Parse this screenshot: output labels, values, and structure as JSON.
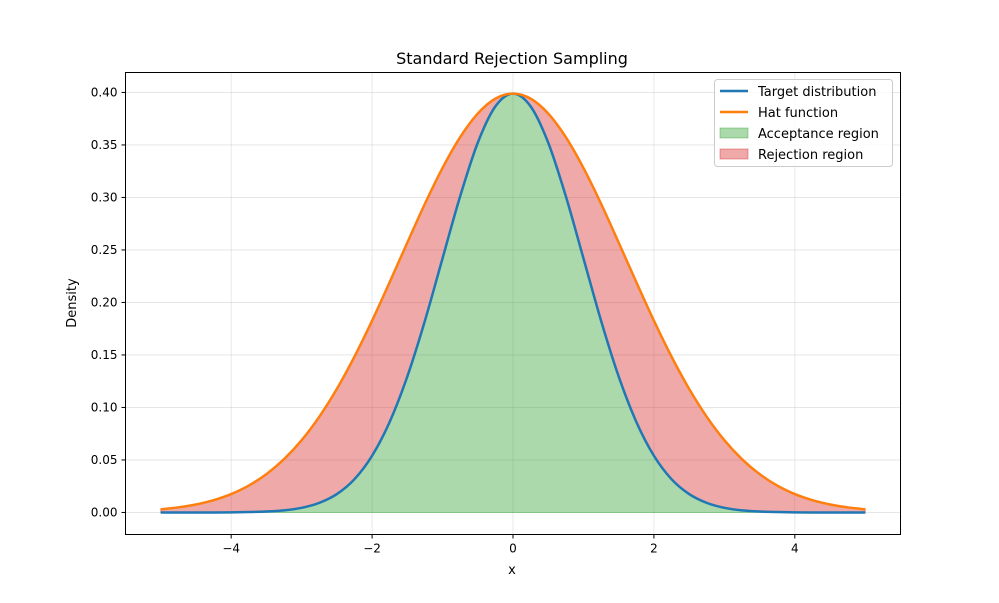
{
  "chart_data": {
    "type": "area",
    "title": "Standard Rejection Sampling",
    "xlabel": "x",
    "ylabel": "Density",
    "xlim": [
      -5.5,
      5.5
    ],
    "ylim": [
      -0.021,
      0.419
    ],
    "xticks": [
      -4,
      -2,
      0,
      2,
      4
    ],
    "xtick_labels": [
      "−4",
      "−2",
      "0",
      "2",
      "4"
    ],
    "yticks": [
      0.0,
      0.05,
      0.1,
      0.15,
      0.2,
      0.25,
      0.3,
      0.35,
      0.4
    ],
    "ytick_labels": [
      "0.00",
      "0.05",
      "0.10",
      "0.15",
      "0.20",
      "0.25",
      "0.30",
      "0.35",
      "0.40"
    ],
    "grid": true,
    "legend_position": "top-right",
    "x": [
      -5,
      -4.75,
      -4.5,
      -4.25,
      -4,
      -3.75,
      -3.5,
      -3.25,
      -3,
      -2.75,
      -2.5,
      -2.25,
      -2,
      -1.75,
      -1.5,
      -1.25,
      -1,
      -0.75,
      -0.5,
      -0.25,
      0,
      0.25,
      0.5,
      0.75,
      1,
      1.25,
      1.5,
      1.75,
      2,
      2.25,
      2.5,
      2.75,
      3,
      3.25,
      3.5,
      3.75,
      4,
      4.25,
      4.5,
      4.75,
      5
    ],
    "series": [
      {
        "name": "Target distribution",
        "kind": "line",
        "color": "#1f77b4",
        "values": [
          0,
          0,
          0,
          0,
          0.0001,
          0.0004,
          0.0009,
          0.002,
          0.0044,
          0.0091,
          0.0175,
          0.0317,
          0.054,
          0.0863,
          0.1295,
          0.1826,
          0.242,
          0.3011,
          0.3521,
          0.3867,
          0.3989,
          0.3867,
          0.3521,
          0.3011,
          0.242,
          0.1826,
          0.1295,
          0.0863,
          0.054,
          0.0317,
          0.0175,
          0.0091,
          0.0044,
          0.002,
          0.0009,
          0.0004,
          0.0001,
          0,
          0,
          0,
          0
        ]
      },
      {
        "name": "Hat function",
        "kind": "line",
        "color": "#ff7f0e",
        "values": [
          0.003,
          0.0049,
          0.0076,
          0.0117,
          0.0175,
          0.0256,
          0.0365,
          0.0507,
          0.0688,
          0.0911,
          0.1177,
          0.1484,
          0.1826,
          0.2194,
          0.257,
          0.294,
          0.3281,
          0.3574,
          0.3799,
          0.3941,
          0.3989,
          0.3941,
          0.3799,
          0.3574,
          0.3281,
          0.294,
          0.257,
          0.2194,
          0.1826,
          0.1484,
          0.1177,
          0.0911,
          0.0688,
          0.0507,
          0.0365,
          0.0256,
          0.0175,
          0.0117,
          0.0076,
          0.0049,
          0.003
        ]
      },
      {
        "name": "Acceptance region",
        "kind": "fill",
        "between": [
          "0",
          "Target distribution"
        ],
        "color": "#2ca02c"
      },
      {
        "name": "Rejection region",
        "kind": "fill",
        "between": [
          "Target distribution",
          "Hat function"
        ],
        "color": "#d62728"
      }
    ]
  }
}
